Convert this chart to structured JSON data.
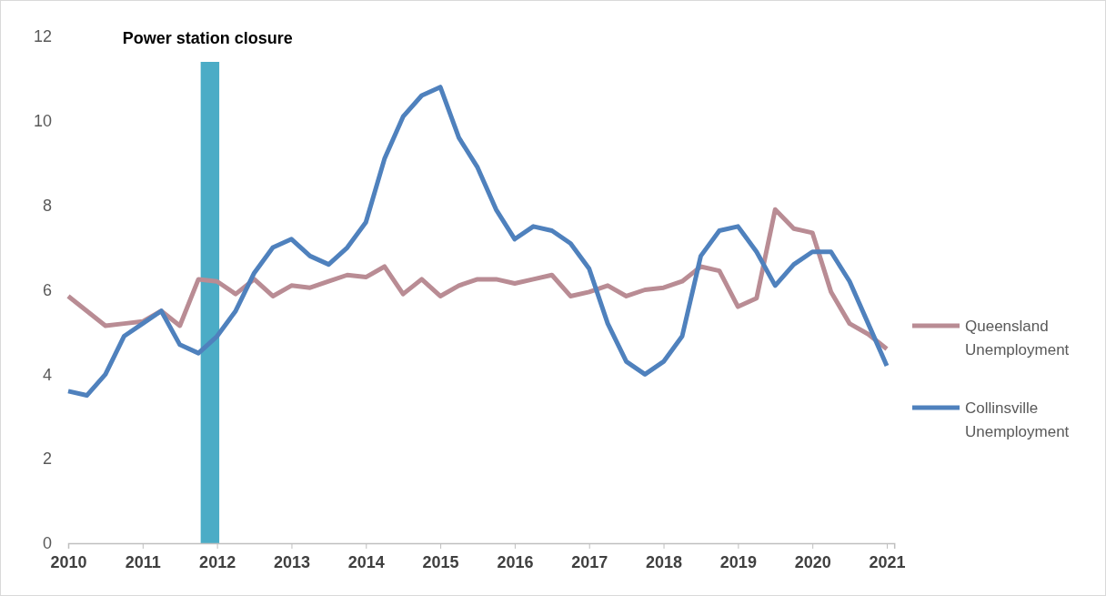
{
  "chart_data": {
    "type": "line",
    "x": [
      2010,
      2010.25,
      2010.5,
      2010.75,
      2011,
      2011.25,
      2011.5,
      2011.75,
      2012,
      2012.25,
      2012.5,
      2012.75,
      2013,
      2013.25,
      2013.5,
      2013.75,
      2014,
      2014.25,
      2014.5,
      2014.75,
      2015,
      2015.25,
      2015.5,
      2015.75,
      2016,
      2016.25,
      2016.5,
      2016.75,
      2017,
      2017.25,
      2017.5,
      2017.75,
      2018,
      2018.25,
      2018.5,
      2018.75,
      2019,
      2019.25,
      2019.5,
      2019.75,
      2020,
      2020.25,
      2020.5,
      2020.75,
      2021
    ],
    "series": [
      {
        "name": "Queensland Unemployment",
        "color": "#b98c94",
        "values": [
          5.85,
          5.5,
          5.15,
          5.2,
          5.25,
          5.5,
          5.15,
          6.25,
          6.2,
          5.9,
          6.25,
          5.85,
          6.1,
          6.05,
          6.2,
          6.35,
          6.3,
          6.55,
          5.9,
          6.25,
          5.85,
          6.1,
          6.25,
          6.25,
          6.15,
          6.25,
          6.35,
          5.85,
          5.95,
          6.1,
          5.85,
          6.0,
          6.05,
          6.2,
          6.55,
          6.45,
          5.6,
          5.8,
          7.9,
          7.45,
          7.35,
          5.95,
          5.2,
          4.95,
          4.6
        ]
      },
      {
        "name": "Collinsville Unemployment",
        "color": "#4f81bd",
        "values": [
          3.6,
          3.5,
          4.0,
          4.9,
          5.2,
          5.5,
          4.7,
          4.5,
          4.9,
          5.5,
          6.4,
          7.0,
          7.2,
          6.8,
          6.6,
          7.0,
          7.6,
          9.1,
          10.1,
          10.6,
          10.8,
          9.6,
          8.9,
          7.9,
          7.2,
          7.5,
          7.4,
          7.1,
          6.5,
          5.2,
          4.3,
          4.0,
          4.3,
          4.9,
          6.8,
          7.4,
          7.5,
          6.9,
          6.1,
          6.6,
          6.9,
          6.9,
          6.2,
          5.2,
          4.2
        ]
      }
    ],
    "xlim": [
      2010,
      2021.1
    ],
    "xticks": [
      2010,
      2011,
      2012,
      2013,
      2014,
      2015,
      2016,
      2017,
      2018,
      2019,
      2020,
      2021
    ],
    "ylim": [
      0,
      12
    ],
    "yticks": [
      0,
      2,
      4,
      6,
      8,
      10,
      12
    ],
    "bands": [
      {
        "axis": "x",
        "from": 2011.78,
        "to": 2012.03,
        "label": "Power station closure",
        "color": "#4bacc6"
      }
    ],
    "grid": false,
    "legend": "right",
    "marker": "none",
    "line_style": "solid"
  }
}
